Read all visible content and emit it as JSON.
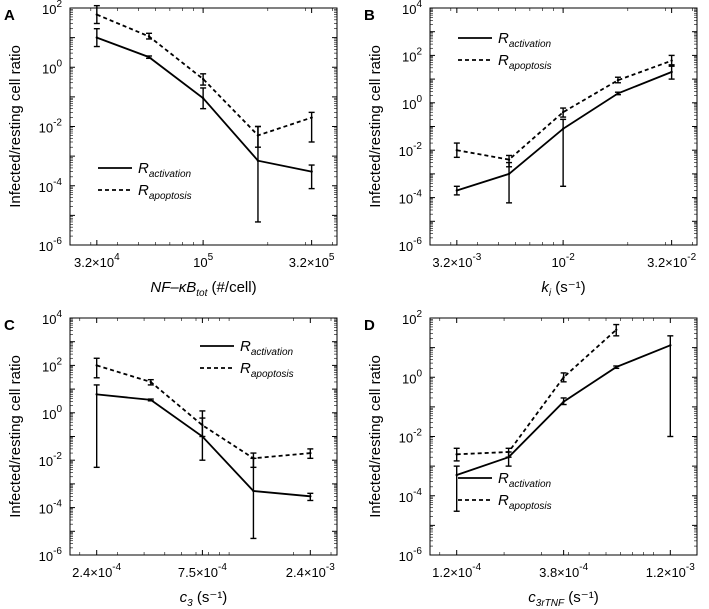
{
  "y_axis_label": "Infected/resting cell ratio",
  "legend": {
    "activation": {
      "main": "R",
      "sub": "activation"
    },
    "apoptosis": {
      "main": "R",
      "sub": "apoptosis"
    }
  },
  "chart_data": [
    {
      "type": "line",
      "panel": "A",
      "xlabel": {
        "main": "NF–κB",
        "sub": "tot",
        "tail": " (#/cell)"
      },
      "xscale": "log",
      "xlim": [
        24000,
        420000
      ],
      "ylim": [
        1e-06,
        100
      ],
      "ylabel": "Infected/resting cell ratio",
      "legend_position": "bottom-left",
      "xticks": [
        {
          "v": 32000,
          "base": "3.2×10",
          "exp": "4"
        },
        {
          "v": 100000,
          "base": "10",
          "exp": "5"
        },
        {
          "v": 320000,
          "base": "3.2×10",
          "exp": "5"
        }
      ],
      "yticks": [
        {
          "v": 1e-06,
          "base": "10",
          "exp": "-6"
        },
        {
          "v": 0.0001,
          "base": "10",
          "exp": "-4"
        },
        {
          "v": 0.01,
          "base": "10",
          "exp": "-2"
        },
        {
          "v": 1,
          "base": "10",
          "exp": "0"
        },
        {
          "v": 100,
          "base": "10",
          "exp": "2"
        }
      ],
      "series": [
        {
          "name": "R_activation",
          "style": "solid",
          "x": [
            32000,
            56000,
            100000,
            180000,
            320000
          ],
          "y": [
            10,
            2.2,
            0.09,
            0.0007,
            0.0003
          ],
          "err_low": [
            5,
            2.0,
            0.04,
            6e-06,
            8e-05
          ],
          "err_high": [
            20,
            2.4,
            0.2,
            0.01,
            0.0005
          ]
        },
        {
          "name": "R_apoptosis",
          "style": "dashed",
          "x": [
            32000,
            56000,
            100000,
            180000,
            320000
          ],
          "y": [
            60,
            11,
            0.4,
            0.005,
            0.02
          ],
          "err_low": [
            30,
            9,
            0.25,
            0.002,
            0.003
          ],
          "err_high": [
            120,
            14,
            0.6,
            0.01,
            0.03
          ]
        }
      ]
    },
    {
      "type": "line",
      "panel": "B",
      "xlabel": {
        "main": "k",
        "sub": "i",
        "tail": " (s⁻¹)"
      },
      "xscale": "log",
      "xlim": [
        0.0024,
        0.042
      ],
      "ylim": [
        1e-06,
        10000
      ],
      "ylabel": "Infected/resting cell ratio",
      "legend_position": "top-left",
      "xticks": [
        {
          "v": 0.0032,
          "base": "3.2×10",
          "exp": "-3"
        },
        {
          "v": 0.01,
          "base": "10",
          "exp": "-2"
        },
        {
          "v": 0.032,
          "base": "3.2×10",
          "exp": "-2"
        }
      ],
      "yticks": [
        {
          "v": 1e-06,
          "base": "10",
          "exp": "-6"
        },
        {
          "v": 0.0001,
          "base": "10",
          "exp": "-4"
        },
        {
          "v": 0.01,
          "base": "10",
          "exp": "-2"
        },
        {
          "v": 1,
          "base": "10",
          "exp": "0"
        },
        {
          "v": 100,
          "base": "10",
          "exp": "2"
        },
        {
          "v": 10000,
          "base": "10",
          "exp": "4"
        }
      ],
      "series": [
        {
          "name": "R_activation",
          "style": "solid",
          "x": [
            0.0032,
            0.0056,
            0.01,
            0.018,
            0.032
          ],
          "y": [
            0.0002,
            0.001,
            0.08,
            2.5,
            20
          ],
          "err_low": [
            0.00013,
            6e-05,
            0.0003,
            2.2,
            10
          ],
          "err_high": [
            0.0003,
            0.003,
            0.2,
            2.8,
            40
          ]
        },
        {
          "name": "R_apoptosis",
          "style": "dashed",
          "x": [
            0.0032,
            0.0056,
            0.01,
            0.018,
            0.032
          ],
          "y": [
            0.01,
            0.004,
            0.4,
            9,
            60
          ],
          "err_low": [
            0.005,
            0.002,
            0.25,
            7,
            35
          ],
          "err_high": [
            0.02,
            0.006,
            0.6,
            12,
            100
          ]
        }
      ]
    },
    {
      "type": "line",
      "panel": "C",
      "xlabel": {
        "main": "c",
        "sub": "3",
        "tail": " (s⁻¹)"
      },
      "xscale": "log",
      "xlim": [
        0.00018,
        0.0032
      ],
      "ylim": [
        1e-06,
        10000
      ],
      "ylabel": "Infected/resting cell ratio",
      "legend_position": "top-right",
      "xticks": [
        {
          "v": 0.00024,
          "base": "2.4×10",
          "exp": "-4"
        },
        {
          "v": 0.00075,
          "base": "7.5×10",
          "exp": "-4"
        },
        {
          "v": 0.0024,
          "base": "2.4×10",
          "exp": "-3"
        }
      ],
      "yticks": [
        {
          "v": 1e-06,
          "base": "10",
          "exp": "-6"
        },
        {
          "v": 0.0001,
          "base": "10",
          "exp": "-4"
        },
        {
          "v": 0.01,
          "base": "10",
          "exp": "-2"
        },
        {
          "v": 1,
          "base": "10",
          "exp": "0"
        },
        {
          "v": 100,
          "base": "10",
          "exp": "2"
        },
        {
          "v": 10000,
          "base": "10",
          "exp": "4"
        }
      ],
      "series": [
        {
          "name": "R_activation",
          "style": "solid",
          "x": [
            0.00024,
            0.00043,
            0.00075,
            0.0013,
            0.0024
          ],
          "y": [
            6,
            3.5,
            0.1,
            0.0005,
            0.0003
          ],
          "err_low": [
            0.005,
            3.2,
            0.01,
            5e-06,
            0.0002
          ],
          "err_high": [
            15,
            3.8,
            1.2,
            0.012,
            0.0004
          ]
        },
        {
          "name": "R_apoptosis",
          "style": "dashed",
          "x": [
            0.00024,
            0.00043,
            0.00075,
            0.0013,
            0.0024
          ],
          "y": [
            100,
            20,
            0.3,
            0.012,
            0.02
          ],
          "err_low": [
            30,
            15,
            0.1,
            0.005,
            0.012
          ],
          "err_high": [
            200,
            25,
            0.6,
            0.02,
            0.03
          ]
        }
      ]
    },
    {
      "type": "line",
      "panel": "D",
      "xlabel": {
        "main": "c",
        "sub": "3rTNF",
        "tail": " (s⁻¹)"
      },
      "xscale": "log",
      "xlim": [
        9e-05,
        0.0016
      ],
      "ylim": [
        1e-06,
        100
      ],
      "ylabel": "Infected/resting cell ratio",
      "legend_position": "bottom-left",
      "xticks": [
        {
          "v": 0.00012,
          "base": "1.2×10",
          "exp": "-4"
        },
        {
          "v": 0.00038,
          "base": "3.8×10",
          "exp": "-4"
        },
        {
          "v": 0.0012,
          "base": "1.2×10",
          "exp": "-3"
        }
      ],
      "yticks": [
        {
          "v": 1e-06,
          "base": "10",
          "exp": "-6"
        },
        {
          "v": 0.0001,
          "base": "10",
          "exp": "-4"
        },
        {
          "v": 0.01,
          "base": "10",
          "exp": "-2"
        },
        {
          "v": 1,
          "base": "10",
          "exp": "0"
        },
        {
          "v": 100,
          "base": "10",
          "exp": "2"
        }
      ],
      "series": [
        {
          "name": "R_activation",
          "style": "solid",
          "x": [
            0.00012,
            0.00021,
            0.00038,
            0.00067,
            0.0012
          ],
          "y": [
            0.0005,
            0.002,
            0.15,
            2.2,
            12
          ],
          "err_low": [
            3e-05,
            0.001,
            0.12,
            2.0,
            0.01
          ],
          "err_high": [
            0.001,
            0.003,
            0.2,
            2.4,
            25
          ]
        },
        {
          "name": "R_apoptosis",
          "style": "dashed",
          "x": [
            0.00012,
            0.00021,
            0.00038,
            0.00067
          ],
          "y": [
            0.0025,
            0.003,
            1,
            40
          ],
          "err_low": [
            0.0015,
            0.002,
            0.7,
            25
          ],
          "err_high": [
            0.004,
            0.004,
            1.4,
            60
          ]
        }
      ]
    }
  ]
}
